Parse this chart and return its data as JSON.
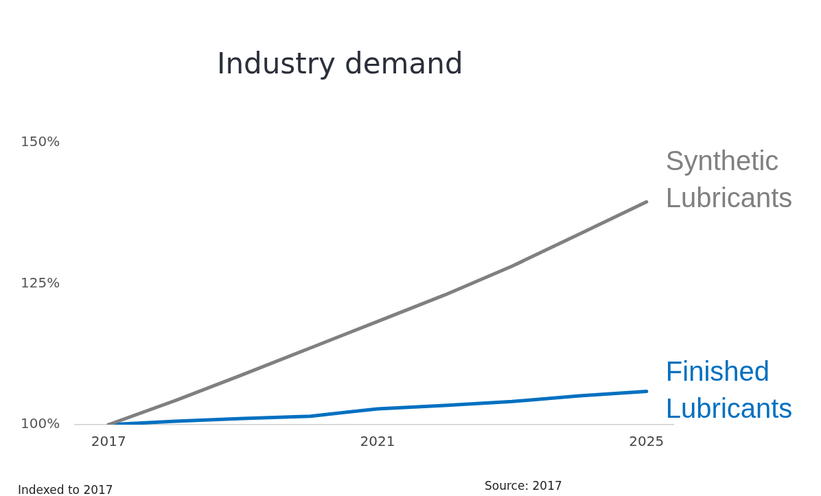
{
  "chart_data": {
    "type": "line",
    "title": "Industry demand",
    "annotations": [
      "Indexed to 2017",
      "Source: 2017"
    ],
    "x": [
      2017,
      2018,
      2019,
      2020,
      2021,
      2022,
      2023,
      2024,
      2025
    ],
    "series": [
      {
        "name": "Synthetic Lubricants",
        "color": "#808080",
        "values": [
          100,
          104.3,
          108.9,
          113.6,
          118.3,
          123,
          128.1,
          133.8,
          139.5
        ]
      },
      {
        "name": "Finished Lubricants",
        "color": "#0070c0",
        "values": [
          100,
          100.6,
          101.1,
          101.5,
          102.8,
          103.4,
          104.1,
          105.1,
          105.9
        ]
      }
    ],
    "xlim": [
      2016.5,
      2025.4
    ],
    "xticks": [
      2017,
      2021,
      2025
    ],
    "ylim": [
      100,
      150
    ],
    "yticks": [
      {
        "value": 100,
        "label": "100%"
      },
      {
        "value": 125,
        "label": "125%"
      },
      {
        "value": 150,
        "label": "150%"
      }
    ],
    "grid": false,
    "legend": false,
    "marker": "none",
    "line_style": "solid"
  }
}
